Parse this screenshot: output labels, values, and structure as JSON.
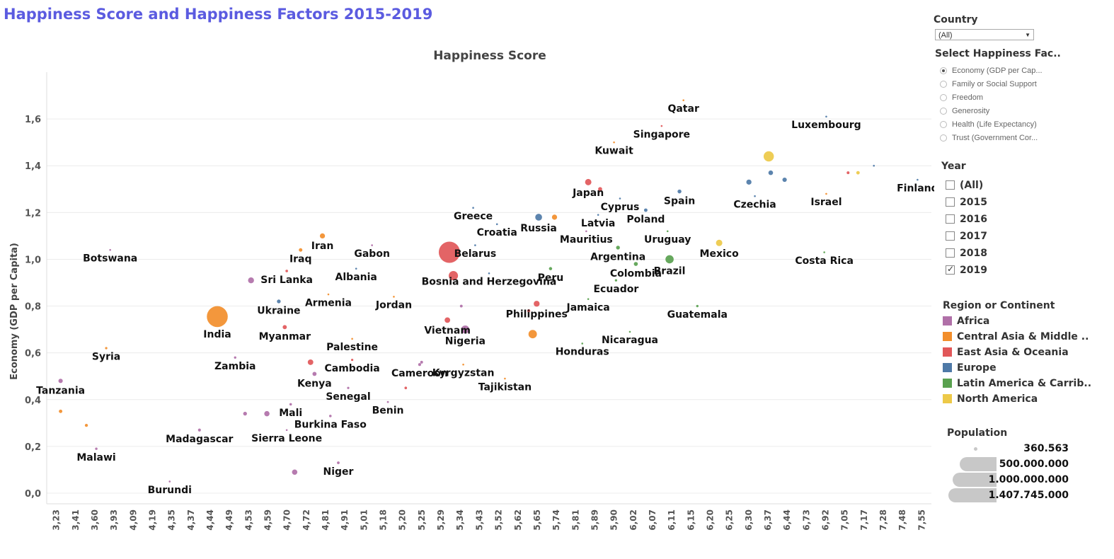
{
  "dashboard_title": "Happiness Score and Happiness Factors 2015-2019",
  "chart_data": {
    "type": "scatter",
    "title": "Happiness Score",
    "xlabel": "",
    "ylabel": "Economy (GDP per Capita)",
    "ylim": [
      0,
      1.8
    ],
    "yticks": [
      "0,0",
      "0,2",
      "0,4",
      "0,6",
      "0,8",
      "1,0",
      "1,2",
      "1,4",
      "1,6"
    ],
    "x_categories": [
      "3,23",
      "3,41",
      "3,60",
      "3,93",
      "4,09",
      "4,19",
      "4,35",
      "4,37",
      "4,44",
      "4,49",
      "4,53",
      "4,59",
      "4,70",
      "4,72",
      "4,81",
      "4,91",
      "5,01",
      "5,18",
      "5,20",
      "5,25",
      "5,29",
      "5,34",
      "5,43",
      "5,52",
      "5,62",
      "5,65",
      "5,74",
      "5,81",
      "5,89",
      "5,90",
      "6,02",
      "6,07",
      "6,11",
      "6,15",
      "6,20",
      "6,25",
      "6,30",
      "6,37",
      "6,44",
      "6,73",
      "6,92",
      "7,05",
      "7,17",
      "7,28",
      "7,48",
      "7,55"
    ],
    "grid": true,
    "colors": {
      "Africa": "#b070a8",
      "Central Asia & Middle ..": "#f28e2b",
      "East Asia & Oceania": "#e15759",
      "Europe": "#4e79a7",
      "Latin America & Carrib..": "#59a14f",
      "North America": "#edc948"
    },
    "points": [
      {
        "label": "Botswana",
        "x": 3.48,
        "y": 1.04,
        "region": "Africa",
        "pop": 2300000
      },
      {
        "label": "Iraq",
        "x": 4.44,
        "y": 1.04,
        "region": "Central Asia & Middle ..",
        "pop": 39000000
      },
      {
        "label": "Iran",
        "x": 4.55,
        "y": 1.1,
        "region": "Central Asia & Middle ..",
        "pop": 83000000
      },
      {
        "label": "Gabon",
        "x": 4.8,
        "y": 1.06,
        "region": "Africa",
        "pop": 2200000
      },
      {
        "label": "Sri Lanka",
        "x": 4.37,
        "y": 0.95,
        "region": "East Asia & Oceania",
        "pop": 21000000
      },
      {
        "label": "Albania",
        "x": 4.72,
        "y": 0.96,
        "region": "Europe",
        "pop": 2900000
      },
      {
        "label": "Armenia",
        "x": 4.58,
        "y": 0.85,
        "region": "Central Asia & Middle ..",
        "pop": 3000000
      },
      {
        "label": "Jordan",
        "x": 4.91,
        "y": 0.84,
        "region": "Central Asia & Middle ..",
        "pop": 10000000
      },
      {
        "label": "Ukraine",
        "x": 4.33,
        "y": 0.82,
        "region": "Europe",
        "pop": 44000000
      },
      {
        "label": "India",
        "x": 4.02,
        "y": 0.755,
        "region": "Central Asia & Middle ..",
        "pop": 1366000000
      },
      {
        "label": "Myanmar",
        "x": 4.36,
        "y": 0.71,
        "region": "East Asia & Oceania",
        "pop": 54000000
      },
      {
        "label": "Syria",
        "x": 3.46,
        "y": 0.62,
        "region": "Central Asia & Middle ..",
        "pop": 17000000
      },
      {
        "label": "Zambia",
        "x": 4.11,
        "y": 0.58,
        "region": "Africa",
        "pop": 18000000
      },
      {
        "label": "Palestine",
        "x": 4.7,
        "y": 0.66,
        "region": "Central Asia & Middle ..",
        "pop": 4700000
      },
      {
        "label": "Cambodia",
        "x": 4.7,
        "y": 0.57,
        "region": "East Asia & Oceania",
        "pop": 16000000
      },
      {
        "label": "Kenya",
        "x": 4.51,
        "y": 0.51,
        "region": "Africa",
        "pop": 52000000
      },
      {
        "label": "Tanzania",
        "x": 3.23,
        "y": 0.48,
        "region": "Africa",
        "pop": 58000000
      },
      {
        "label": "Senegal",
        "x": 4.68,
        "y": 0.45,
        "region": "Africa",
        "pop": 16000000
      },
      {
        "label": "Mali",
        "x": 4.39,
        "y": 0.38,
        "region": "Africa",
        "pop": 20000000
      },
      {
        "label": "Benin",
        "x": 4.88,
        "y": 0.39,
        "region": "Africa",
        "pop": 12000000
      },
      {
        "label": "Burkina Faso",
        "x": 4.59,
        "y": 0.33,
        "region": "Africa",
        "pop": 20000000
      },
      {
        "label": "Madagascar",
        "x": 3.93,
        "y": 0.27,
        "region": "Africa",
        "pop": 27000000
      },
      {
        "label": "Sierra Leone",
        "x": 4.37,
        "y": 0.27,
        "region": "Africa",
        "pop": 7800000
      },
      {
        "label": "Malawi",
        "x": 3.41,
        "y": 0.19,
        "region": "Africa",
        "pop": 19000000
      },
      {
        "label": "Niger",
        "x": 4.63,
        "y": 0.13,
        "region": "Africa",
        "pop": 23000000
      },
      {
        "label": "Burundi",
        "x": 3.78,
        "y": 0.05,
        "region": "Africa",
        "pop": 11000000
      },
      {
        "label": "Greece",
        "x": 5.31,
        "y": 1.22,
        "region": "Europe",
        "pop": 10700000
      },
      {
        "label": "Croatia",
        "x": 5.43,
        "y": 1.15,
        "region": "Europe",
        "pop": 4100000
      },
      {
        "label": "Belarus",
        "x": 5.32,
        "y": 1.06,
        "region": "Europe",
        "pop": 9400000
      },
      {
        "label": "Bosnia and Herzegovina",
        "x": 5.39,
        "y": 0.94,
        "region": "Europe",
        "pop": 3300000
      },
      {
        "label": "Vietnam",
        "x": 5.18,
        "y": 0.74,
        "region": "East Asia & Oceania",
        "pop": 96000000
      },
      {
        "label": "Nigeria",
        "x": 5.27,
        "y": 0.7,
        "region": "Africa",
        "pop": 201000000
      },
      {
        "label": "Cameroon",
        "x": 5.04,
        "y": 0.55,
        "region": "Africa",
        "pop": 26000000
      },
      {
        "label": "Kyrgyzstan",
        "x": 5.26,
        "y": 0.55,
        "region": "Central Asia & Middle ..",
        "pop": 6400000
      },
      {
        "label": "Tajikistan",
        "x": 5.47,
        "y": 0.49,
        "region": "Central Asia & Middle ..",
        "pop": 9300000
      },
      {
        "label": "Russia",
        "x": 5.64,
        "y": 1.18,
        "region": "Europe",
        "pop": 145000000
      },
      {
        "label": "Peru",
        "x": 5.7,
        "y": 0.96,
        "region": "Latin America & Carrib..",
        "pop": 32000000
      },
      {
        "label": "Philippines",
        "x": 5.63,
        "y": 0.81,
        "region": "East Asia & Oceania",
        "pop": 108000000
      },
      {
        "label": "Honduras",
        "x": 5.86,
        "y": 0.64,
        "region": "Latin America & Carrib..",
        "pop": 9700000
      },
      {
        "label": "Japan",
        "x": 5.89,
        "y": 1.33,
        "region": "East Asia & Oceania",
        "pop": 126000000
      },
      {
        "label": "Mauritius",
        "x": 5.88,
        "y": 1.12,
        "region": "Africa",
        "pop": 1300000
      },
      {
        "label": "Latvia",
        "x": 5.94,
        "y": 1.19,
        "region": "Europe",
        "pop": 1900000
      },
      {
        "label": "Jamaica",
        "x": 5.89,
        "y": 0.83,
        "region": "Latin America & Carrib..",
        "pop": 2900000
      },
      {
        "label": "Kuwait",
        "x": 6.02,
        "y": 1.5,
        "region": "Central Asia & Middle ..",
        "pop": 4200000
      },
      {
        "label": "Cyprus",
        "x": 6.05,
        "y": 1.26,
        "region": "Europe",
        "pop": 1200000
      },
      {
        "label": "Argentina",
        "x": 6.04,
        "y": 1.05,
        "region": "Latin America & Carrib..",
        "pop": 45000000
      },
      {
        "label": "Ecuador",
        "x": 6.03,
        "y": 0.91,
        "region": "Latin America & Carrib..",
        "pop": 17000000
      },
      {
        "label": "Colombia",
        "x": 6.13,
        "y": 0.98,
        "region": "Latin America & Carrib..",
        "pop": 50000000
      },
      {
        "label": "Nicaragua",
        "x": 6.1,
        "y": 0.69,
        "region": "Latin America & Carrib..",
        "pop": 6500000
      },
      {
        "label": "Poland",
        "x": 6.18,
        "y": 1.21,
        "region": "Europe",
        "pop": 38000000
      },
      {
        "label": "Singapore",
        "x": 6.26,
        "y": 1.57,
        "region": "East Asia & Oceania",
        "pop": 5700000
      },
      {
        "label": "Uruguay",
        "x": 6.29,
        "y": 1.12,
        "region": "Latin America & Carrib..",
        "pop": 3500000
      },
      {
        "label": "Brazil",
        "x": 6.3,
        "y": 1.0,
        "region": "Latin America & Carrib..",
        "pop": 211000000
      },
      {
        "label": "Guatemala",
        "x": 6.44,
        "y": 0.8,
        "region": "Latin America & Carrib..",
        "pop": 17600000
      },
      {
        "label": "Qatar",
        "x": 6.37,
        "y": 1.68,
        "region": "Central Asia & Middle ..",
        "pop": 2800000
      },
      {
        "label": "Spain",
        "x": 6.35,
        "y": 1.29,
        "region": "Europe",
        "pop": 47000000
      },
      {
        "label": "Czechia",
        "x": 6.73,
        "y": 1.27,
        "region": "Europe",
        "pop": 10700000
      },
      {
        "label": "Mexico",
        "x": 6.55,
        "y": 1.07,
        "region": "North America",
        "pop": 127000000
      },
      {
        "label": "Luxembourg",
        "x": 7.09,
        "y": 1.61,
        "region": "Europe",
        "pop": 620000
      },
      {
        "label": "Israel",
        "x": 7.09,
        "y": 1.28,
        "region": "Central Asia & Middle ..",
        "pop": 9000000
      },
      {
        "label": "Costa Rica",
        "x": 7.08,
        "y": 1.03,
        "region": "Latin America & Carrib..",
        "pop": 5000000
      },
      {
        "label": "Finland",
        "x": 7.55,
        "y": 1.34,
        "region": "Europe",
        "pop": 5500000
      },
      {
        "label": "",
        "x": 6.8,
        "y": 1.44,
        "region": "North America",
        "pop": 328000000
      },
      {
        "label": "",
        "x": 5.19,
        "y": 1.03,
        "region": "East Asia & Oceania",
        "pop": 1407745000
      },
      {
        "label": "",
        "x": 5.21,
        "y": 0.93,
        "region": "East Asia & Oceania",
        "pop": 270000000
      },
      {
        "label": "",
        "x": 4.19,
        "y": 0.91,
        "region": "Africa",
        "pop": 110000000
      },
      {
        "label": "",
        "x": 4.49,
        "y": 0.56,
        "region": "East Asia & Oceania",
        "pop": 97000000
      },
      {
        "label": "",
        "x": 5.61,
        "y": 0.68,
        "region": "Central Asia & Middle ..",
        "pop": 220000000
      },
      {
        "label": "",
        "x": 4.27,
        "y": 0.34,
        "region": "Africa",
        "pop": 88000000
      },
      {
        "label": "",
        "x": 4.41,
        "y": 0.09,
        "region": "Africa",
        "pop": 90000000
      },
      {
        "label": "",
        "x": 3.23,
        "y": 0.35,
        "region": "Central Asia & Middle ..",
        "pop": 38000000
      },
      {
        "label": "",
        "x": 5.72,
        "y": 1.18,
        "region": "Central Asia & Middle ..",
        "pop": 83000000
      },
      {
        "label": "",
        "x": 5.95,
        "y": 1.3,
        "region": "East Asia & Oceania",
        "pop": 51000000
      },
      {
        "label": "",
        "x": 6.81,
        "y": 1.37,
        "region": "Europe",
        "pop": 67000000
      },
      {
        "label": "",
        "x": 6.88,
        "y": 1.34,
        "region": "Europe",
        "pop": 60000000
      },
      {
        "label": "",
        "x": 6.7,
        "y": 1.33,
        "region": "Europe",
        "pop": 83000000
      },
      {
        "label": "",
        "x": 5.59,
        "y": 0.78,
        "region": "East Asia & Oceania",
        "pop": 30000000
      },
      {
        "label": "",
        "x": 4.16,
        "y": 0.34,
        "region": "Africa",
        "pop": 45000000
      },
      {
        "label": "",
        "x": 5.05,
        "y": 0.56,
        "region": "Africa",
        "pop": 25000000
      },
      {
        "label": "",
        "x": 4.97,
        "y": 0.45,
        "region": "East Asia & Oceania",
        "pop": 21000000
      },
      {
        "label": "",
        "x": 5.25,
        "y": 0.8,
        "region": "Africa",
        "pop": 24000000
      },
      {
        "label": "",
        "x": 3.36,
        "y": 0.29,
        "region": "Central Asia & Middle ..",
        "pop": 29000000
      },
      {
        "label": "",
        "x": 7.2,
        "y": 1.37,
        "region": "East Asia & Oceania",
        "pop": 25000000
      },
      {
        "label": "",
        "x": 7.25,
        "y": 1.37,
        "region": "North America",
        "pop": 37000000
      },
      {
        "label": "",
        "x": 7.33,
        "y": 1.4,
        "region": "Europe",
        "pop": 8000000
      }
    ]
  },
  "filters": {
    "country": {
      "title": "Country",
      "selected": "(All)"
    },
    "factor": {
      "title": "Select Happiness Fac..",
      "options": [
        "Economy (GDP per Cap...",
        "Family or Social Support",
        "Freedom",
        "Generosity",
        "Health (Life Expectancy)",
        "Trust (Government Cor..."
      ],
      "selected_index": 0
    },
    "year": {
      "title": "Year",
      "options": [
        {
          "label": "(All)",
          "checked": false
        },
        {
          "label": "2015",
          "checked": false
        },
        {
          "label": "2016",
          "checked": false
        },
        {
          "label": "2017",
          "checked": false
        },
        {
          "label": "2018",
          "checked": false
        },
        {
          "label": "2019",
          "checked": true
        }
      ]
    }
  },
  "legend": {
    "title": "Region or Continent",
    "items": [
      {
        "label": "Africa",
        "color": "#b070a8"
      },
      {
        "label": "Central Asia & Middle ..",
        "color": "#f28e2b"
      },
      {
        "label": "East Asia & Oceania",
        "color": "#e15759"
      },
      {
        "label": "Europe",
        "color": "#4e79a7"
      },
      {
        "label": "Latin America & Carrib..",
        "color": "#59a14f"
      },
      {
        "label": "North America",
        "color": "#edc948"
      }
    ]
  },
  "size_legend": {
    "title": "Population",
    "items": [
      {
        "label": "360.563",
        "value": 360563
      },
      {
        "label": "500.000.000",
        "value": 500000000
      },
      {
        "label": "1.000.000.000",
        "value": 1000000000
      },
      {
        "label": "1.407.745.000",
        "value": 1407745000
      }
    ]
  }
}
